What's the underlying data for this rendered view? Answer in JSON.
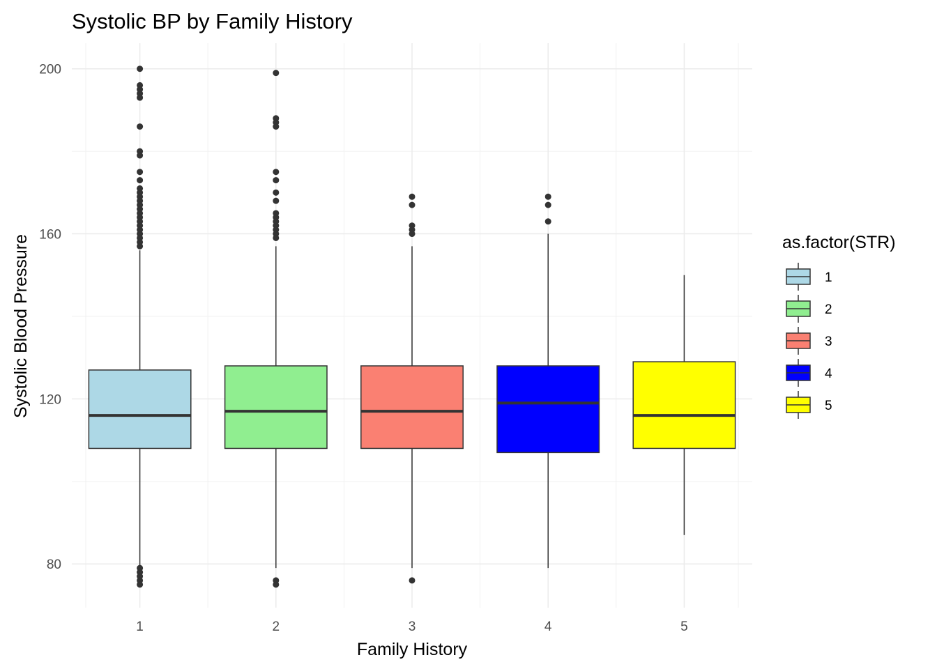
{
  "chart_data": {
    "type": "boxplot",
    "title": "Systolic BP by Family History",
    "xlabel": "Family History",
    "ylabel": "Systolic Blood Pressure",
    "categories": [
      "1",
      "2",
      "3",
      "4",
      "5"
    ],
    "y_ticks": [
      80,
      120,
      160,
      200
    ],
    "ylim": [
      69.4,
      206.2
    ],
    "grid": true,
    "legend": {
      "title": "as.factor(STR)",
      "placement": "right",
      "items": [
        "1",
        "2",
        "3",
        "4",
        "5"
      ]
    },
    "boxes": [
      {
        "category": "1",
        "color": "#ADD8E6",
        "lower_whisker": 79,
        "q1": 108,
        "median": 116,
        "q3": 127,
        "upper_whisker": 156,
        "outliers": [
          200,
          196,
          195,
          194,
          193,
          186,
          180,
          179,
          175,
          173,
          171,
          170,
          169,
          168,
          167,
          166,
          165,
          164,
          163,
          162,
          161,
          160,
          159,
          158,
          157,
          79,
          78,
          77,
          76,
          75
        ]
      },
      {
        "category": "2",
        "color": "#90EE90",
        "lower_whisker": 79,
        "q1": 108,
        "median": 117,
        "q3": 128,
        "upper_whisker": 157,
        "outliers": [
          199,
          188,
          187,
          186,
          175,
          173,
          170,
          168,
          165,
          164,
          163,
          162,
          161,
          160,
          159,
          76,
          75
        ]
      },
      {
        "category": "3",
        "color": "#FA8072",
        "lower_whisker": 79,
        "q1": 108,
        "median": 117,
        "q3": 128,
        "upper_whisker": 157,
        "outliers": [
          169,
          167,
          162,
          161,
          160,
          76
        ]
      },
      {
        "category": "4",
        "color": "#0000FF",
        "lower_whisker": 79,
        "q1": 107,
        "median": 119,
        "q3": 128,
        "upper_whisker": 160,
        "outliers": [
          169,
          167,
          163
        ]
      },
      {
        "category": "5",
        "color": "#FFFF00",
        "lower_whisker": 87,
        "q1": 108,
        "median": 116,
        "q3": 129,
        "upper_whisker": 150,
        "outliers": []
      }
    ]
  }
}
